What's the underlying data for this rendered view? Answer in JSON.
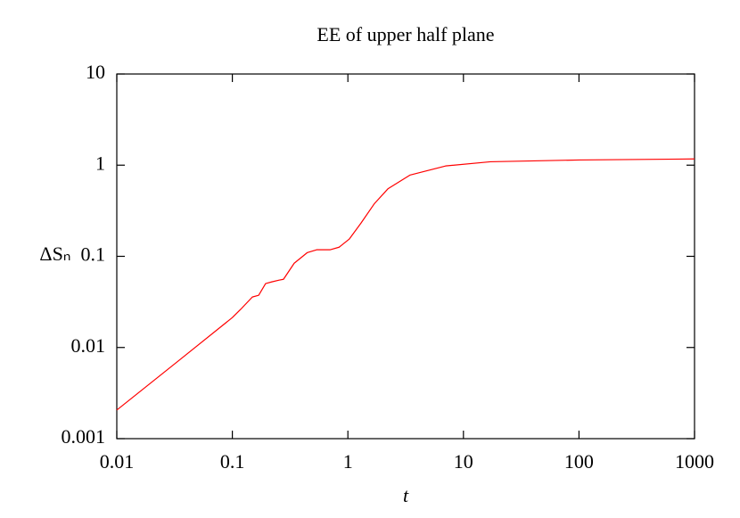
{
  "chart_data": {
    "type": "line",
    "title": "EE of upper half plane",
    "xlabel": "t",
    "ylabel": "ΔSₙ",
    "log_x": true,
    "log_y": true,
    "xlim": [
      0.01,
      1000
    ],
    "ylim": [
      0.001,
      10
    ],
    "xticks": [
      0.01,
      0.1,
      1,
      10,
      100,
      1000
    ],
    "yticks": [
      0.001,
      0.01,
      0.1,
      1,
      10
    ],
    "x": [
      0.01,
      0.034,
      0.1,
      0.118,
      0.149,
      0.169,
      0.194,
      0.22,
      0.254,
      0.277,
      0.343,
      0.446,
      0.536,
      0.7,
      0.84,
      1.03,
      1.3,
      1.7,
      2.22,
      3.46,
      7,
      17.1,
      101,
      1000
    ],
    "series": [
      {
        "color": "#ff0000",
        "values": [
          0.00206,
          0.0071,
          0.0213,
          0.0262,
          0.0358,
          0.0374,
          0.0502,
          0.0525,
          0.0548,
          0.056,
          0.084,
          0.11,
          0.118,
          0.118,
          0.126,
          0.155,
          0.232,
          0.38,
          0.55,
          0.78,
          0.98,
          1.09,
          1.14,
          1.17
        ]
      }
    ]
  }
}
